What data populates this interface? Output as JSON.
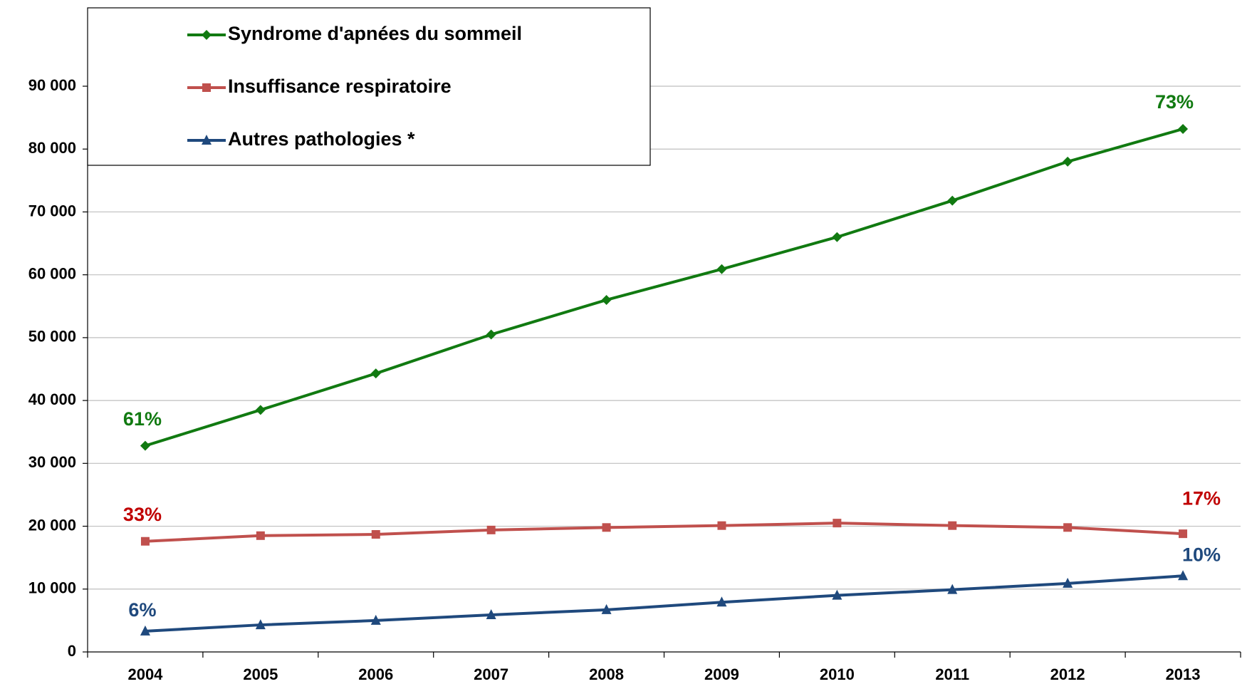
{
  "chart_data": {
    "type": "line",
    "categories": [
      "2004",
      "2005",
      "2006",
      "2007",
      "2008",
      "2009",
      "2010",
      "2011",
      "2012",
      "2013"
    ],
    "ylim": [
      0,
      90000
    ],
    "yticks": [
      0,
      {
        "value": 10000,
        "label": "10 000"
      },
      {
        "value": 20000,
        "label": "20 000"
      },
      {
        "value": 30000,
        "label": "30 000"
      },
      {
        "value": 40000,
        "label": "40 000"
      },
      {
        "value": 50000,
        "label": "50 000"
      },
      {
        "value": 60000,
        "label": "60 000"
      },
      {
        "value": 70000,
        "label": "70 000"
      },
      {
        "value": 80000,
        "label": "80 000"
      },
      {
        "value": 90000,
        "label": "90 000"
      }
    ],
    "grid": true,
    "legend": "top-left",
    "series": [
      {
        "name": "Syndrome d'apnées du sommeil",
        "color": "#117a11",
        "marker": "diamond",
        "values": [
          32800,
          38500,
          44300,
          50500,
          56000,
          60900,
          66000,
          71800,
          78000,
          83200
        ],
        "share_labels": [
          "61%",
          "73%"
        ]
      },
      {
        "name": "Insuffisance respiratoire",
        "color": "#c0504d",
        "label_color": "#c00000",
        "marker": "square",
        "values": [
          17600,
          18500,
          18700,
          19400,
          19800,
          20100,
          20500,
          20100,
          19800,
          18800
        ],
        "share_labels": [
          "33%",
          "17%"
        ]
      },
      {
        "name": "Autres pathologies *",
        "color": "#1f497d",
        "label_color": "#1f497d",
        "marker": "triangle",
        "values": [
          3300,
          4300,
          5000,
          5900,
          6700,
          7900,
          9000,
          9900,
          10900,
          12100
        ],
        "share_labels": [
          "6%",
          "10%"
        ]
      }
    ]
  }
}
